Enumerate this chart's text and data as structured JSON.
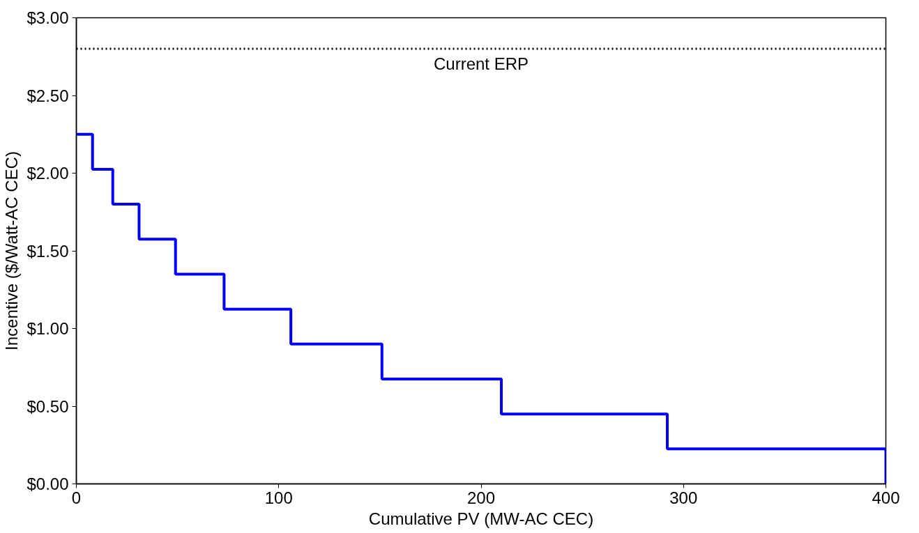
{
  "chart_data": {
    "type": "step",
    "xlabel": "Cumulative PV (MW-AC CEC)",
    "ylabel": "Incentive ($/Watt-AC CEC)",
    "x": [
      0,
      8,
      18,
      31,
      49,
      73,
      106,
      151,
      210,
      292,
      400
    ],
    "series": [
      {
        "color": "#0000ff",
        "values": [
          2.25,
          2.025,
          1.8,
          1.575,
          1.35,
          1.125,
          0.9,
          0.675,
          0.45,
          0.225,
          0
        ]
      }
    ],
    "xlim": [
      0,
      400
    ],
    "xticks": [
      0,
      100,
      200,
      300,
      400
    ],
    "ylim": [
      0,
      3
    ],
    "yticks": [
      {
        "value": 0,
        "label": "$0.00"
      },
      {
        "value": 0.5,
        "label": "$0.50"
      },
      {
        "value": 1,
        "label": "$1.00"
      },
      {
        "value": 1.5,
        "label": "$1.50"
      },
      {
        "value": 2,
        "label": "$2.00"
      },
      {
        "value": 2.5,
        "label": "$2.50"
      },
      {
        "value": 3,
        "label": "$3.00"
      }
    ],
    "ref_lines": [
      {
        "axis": "y",
        "value": 2.8,
        "label": "Current ERP",
        "color": "#000000",
        "line_style": "dotted"
      }
    ],
    "grid": false
  }
}
